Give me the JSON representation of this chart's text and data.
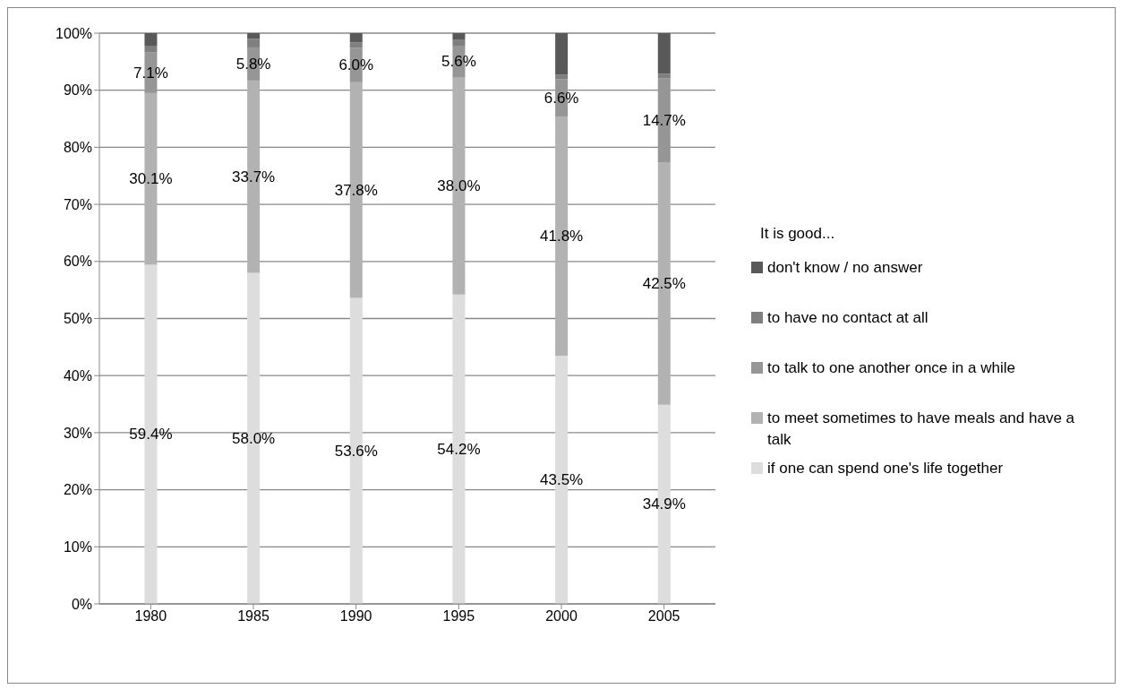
{
  "chart_data": {
    "type": "bar",
    "stacked": true,
    "categories": [
      "1980",
      "1985",
      "1990",
      "1995",
      "2000",
      "2005"
    ],
    "series": [
      {
        "name": "if one can spend one's life together",
        "color": "#dddddd",
        "values": [
          59.4,
          58.0,
          53.6,
          54.2,
          43.5,
          34.9
        ],
        "value_labels": [
          "59.4%",
          "58.0%",
          "53.6%",
          "54.2%",
          "43.5%",
          "34.9%"
        ]
      },
      {
        "name": "to meet sometimes to have meals and have a talk",
        "color": "#b2b2b2",
        "values": [
          30.1,
          33.7,
          37.8,
          38.0,
          41.8,
          42.5
        ],
        "value_labels": [
          "30.1%",
          "33.7%",
          "37.8%",
          "38.0%",
          "41.8%",
          "42.5%"
        ]
      },
      {
        "name": "to talk to one another once in a while",
        "color": "#969696",
        "values": [
          7.1,
          5.8,
          6.0,
          5.6,
          6.6,
          14.7
        ],
        "value_labels": [
          "7.1%",
          "5.8%",
          "6.0%",
          "5.6%",
          "6.6%",
          "14.7%"
        ]
      },
      {
        "name": "to have no contact at all",
        "color": "#7f7f7f",
        "values": [
          1.2,
          1.5,
          1.0,
          1.0,
          0.8,
          0.8
        ]
      },
      {
        "name": "don't know / no answer",
        "color": "#595959",
        "values": [
          2.2,
          1.0,
          1.6,
          1.2,
          7.3,
          7.1
        ]
      }
    ],
    "legend_title": "It is good...",
    "legend": "right",
    "ylim": [
      0,
      100
    ],
    "yticks": [
      {
        "value": 0,
        "label": "0%"
      },
      {
        "value": 10,
        "label": "10%"
      },
      {
        "value": 20,
        "label": "20%"
      },
      {
        "value": 30,
        "label": "30%"
      },
      {
        "value": 40,
        "label": "40%"
      },
      {
        "value": 50,
        "label": "50%"
      },
      {
        "value": 60,
        "label": "60%"
      },
      {
        "value": 70,
        "label": "70%"
      },
      {
        "value": 80,
        "label": "80%"
      },
      {
        "value": 90,
        "label": "90%"
      },
      {
        "value": 100,
        "label": "100%"
      }
    ],
    "grid": "y"
  }
}
